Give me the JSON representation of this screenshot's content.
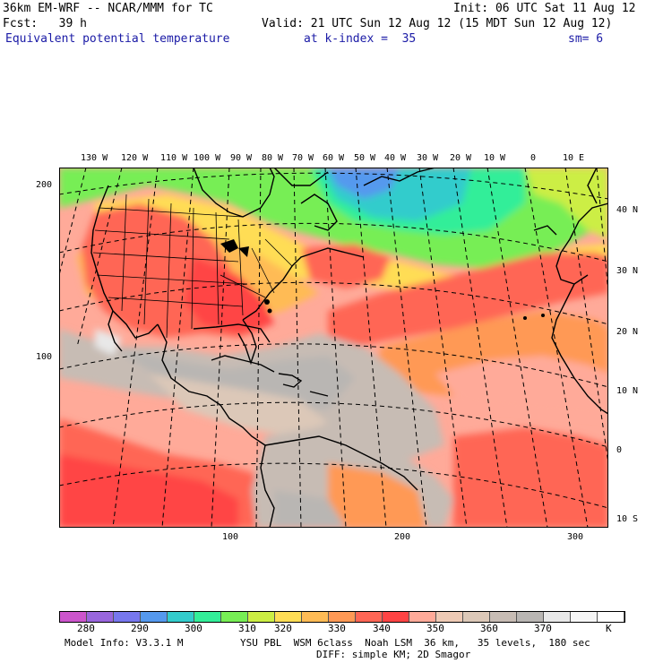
{
  "header": {
    "model_line": "36km EM-WRF -- NCAR/MMM for TC",
    "init_line": "Init: 06 UTC Sat 11 Aug 12",
    "fcst_line": "Fcst:   39 h",
    "valid_line": "Valid: 21 UTC Sun 12 Aug 12 (15 MDT Sun 12 Aug 12)",
    "field_name": "Equivalent potential temperature",
    "level": "at k-index =  35",
    "smoothing": "sm= 6"
  },
  "map": {
    "top_lon_labels": [
      "130 W",
      "120 W",
      "110 W",
      "100 W",
      "90 W",
      "80 W",
      "70 W",
      "60 W",
      "50 W",
      "40 W",
      "30 W",
      "20 W",
      "10 W",
      "0",
      "10 E"
    ],
    "right_lat_labels": [
      "40 N",
      "30 N",
      "20 N",
      "10 N",
      "0",
      "10 S"
    ],
    "left_grid_labels": [
      "200",
      "100"
    ],
    "bottom_grid_labels": [
      "100",
      "200",
      "300"
    ]
  },
  "colorbar": {
    "colors": [
      "#cc55cc",
      "#9966dd",
      "#7777ee",
      "#5599ee",
      "#33cccc",
      "#33ee99",
      "#77ee55",
      "#ccee44",
      "#ffdd55",
      "#ffbb55",
      "#ff9955",
      "#ff6655",
      "#ff4444",
      "#ffaa99",
      "#eecab5",
      "#dcc8b8",
      "#c7bcb4",
      "#b9b6b3",
      "#e8e8e8",
      "#f6f6f6",
      "#ffffff"
    ],
    "labels": [
      "280",
      "290",
      "300",
      "310",
      "320",
      "330",
      "340",
      "350",
      "360",
      "370"
    ],
    "unit": "K"
  },
  "footer": {
    "model_info": "Model Info: V3.3.1 M",
    "physics": "YSU PBL  WSM 6class  Noah LSM  36 km,   35 levels,  180 sec",
    "diffusion": "DIFF: simple KM; 2D Smagor"
  }
}
